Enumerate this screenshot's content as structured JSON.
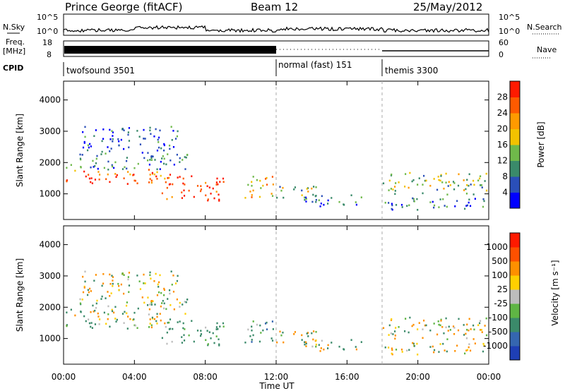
{
  "header": {
    "station": "Prince George (fitACF)",
    "beam": "Beam 12",
    "date": "25/May/2012"
  },
  "nsky_panel": {
    "left_label": "N.Sky",
    "right_label": "N.Search",
    "left_ticks": [
      "10^5",
      "10^0"
    ],
    "right_ticks": [
      "10^5",
      "10^0"
    ]
  },
  "freq_panel": {
    "left_label_1": "Freq.",
    "left_label_2": "[MHz]",
    "right_label": "Nave",
    "left_ticks": [
      "18",
      "8"
    ],
    "right_ticks": [
      "60",
      "0"
    ]
  },
  "cpid_panel": {
    "label": "CPID",
    "segments": [
      {
        "name": "twofsound 3501",
        "start": "00:00",
        "end": "12:00"
      },
      {
        "name": "normal (fast) 151",
        "start": "12:00",
        "end": "18:00"
      },
      {
        "name": "themis 3300",
        "start": "18:00",
        "end": "24:00"
      }
    ]
  },
  "x_axis": {
    "label": "Time UT",
    "ticks": [
      "00:00",
      "04:00",
      "08:00",
      "12:00",
      "16:00",
      "20:00",
      "00:00"
    ],
    "range_hours": [
      0,
      24
    ]
  },
  "power_panel": {
    "ylabel": "Slant Range [km]",
    "y_ticks": [
      "1000",
      "2000",
      "3000",
      "4000"
    ],
    "colorbar_label": "Power [dB]",
    "colorbar_ticks": [
      "4",
      "8",
      "12",
      "16",
      "20",
      "24",
      "28"
    ],
    "colors": [
      "#0000ff",
      "#2a4fb8",
      "#3a8a6a",
      "#6fb94a",
      "#f2c200",
      "#ff9a00",
      "#ff5a00",
      "#ff1a00"
    ]
  },
  "velocity_panel": {
    "ylabel": "Slant Range [km]",
    "y_ticks": [
      "1000",
      "2000",
      "3000",
      "4000"
    ],
    "colorbar_label": "Velocity [m s⁻¹]",
    "colorbar_ticks": [
      "1000",
      "500",
      "100",
      "25",
      "-25",
      "-100",
      "-500",
      "-1000"
    ],
    "colors": [
      "#1e3fb5",
      "#3566b0",
      "#3b8a6a",
      "#5fb544",
      "#bdbdbd",
      "#ffd000",
      "#ff9000",
      "#ff5000",
      "#ff1a00"
    ]
  },
  "chart_data": {
    "type": "heatmap",
    "title": "Prince George (fitACF)   Beam 12   25/May/2012",
    "xlabel": "Time UT",
    "ylabel": "Slant Range [km]",
    "xlim_hours": [
      0,
      24
    ],
    "ylim_km": [
      180,
      4600
    ],
    "panels": [
      "Power [dB]",
      "Velocity [m s⁻¹]"
    ],
    "power_range_db": [
      0,
      30
    ],
    "velocity_range": [
      -1000,
      1000
    ],
    "scatter_regions": [
      {
        "t0": 0.1,
        "t1": 6.0,
        "r0": 1300,
        "r1": 1800,
        "power": 24,
        "velocity": 10
      },
      {
        "t0": 0.1,
        "t1": 7.0,
        "r0": 1800,
        "r1": 2400,
        "power": 8,
        "velocity": 20
      },
      {
        "t0": 1.0,
        "t1": 6.5,
        "r0": 2400,
        "r1": 3200,
        "power": 6,
        "velocity": 0
      },
      {
        "t0": 5.5,
        "t1": 9.0,
        "r0": 800,
        "r1": 1600,
        "power": 26,
        "velocity": 200
      },
      {
        "t0": 10.2,
        "t1": 11.9,
        "r0": 900,
        "r1": 1700,
        "power": 18,
        "velocity": 300
      },
      {
        "t0": 12.0,
        "t1": 15.0,
        "r0": 900,
        "r1": 1300,
        "power": 14,
        "velocity": 80
      },
      {
        "t0": 13.5,
        "t1": 17.0,
        "r0": 600,
        "r1": 1000,
        "power": 6,
        "velocity": 10
      },
      {
        "t0": 18.0,
        "t1": 24.0,
        "r0": 1000,
        "r1": 1700,
        "power": 14,
        "velocity": 0
      },
      {
        "t0": 18.0,
        "t1": 24.0,
        "r0": 500,
        "r1": 900,
        "power": 8,
        "velocity": -50
      }
    ]
  }
}
